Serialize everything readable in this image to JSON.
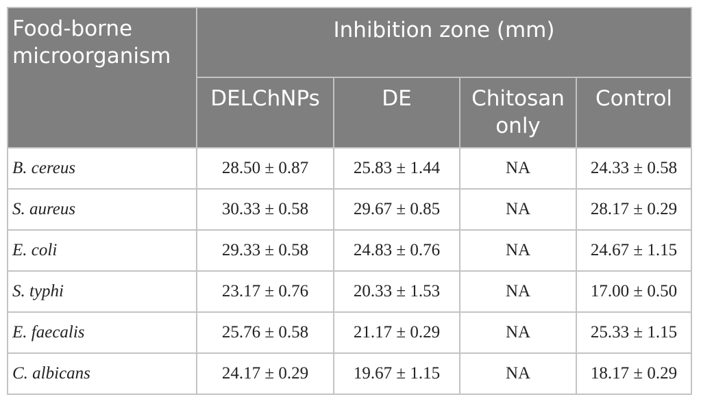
{
  "table": {
    "header": {
      "first": "Food-borne microorganism",
      "group": "Inhibition zone (mm)",
      "columns": [
        "DELChNPs",
        "DE",
        "Chitosan only",
        "Control"
      ]
    },
    "rows": [
      [
        "B. cereus",
        "28.50 ± 0.87",
        "25.83 ± 1.44",
        "NA",
        "24.33 ± 0.58"
      ],
      [
        "S. aureus",
        "30.33 ± 0.58",
        "29.67 ± 0.85",
        "NA",
        "28.17 ± 0.29"
      ],
      [
        "E. coli",
        "29.33 ± 0.58",
        "24.83 ± 0.76",
        "NA",
        "24.67 ± 1.15"
      ],
      [
        "S. typhi",
        "23.17 ± 0.76",
        "20.33 ± 1.53",
        "NA",
        "17.00 ± 0.50"
      ],
      [
        "E. faecalis",
        "25.76 ± 0.58",
        "21.17 ± 0.29",
        "NA",
        "25.33 ± 1.15"
      ],
      [
        "C. albicans",
        "24.17 ± 0.29",
        "19.67 ± 1.15",
        "NA",
        "18.17 ± 0.29"
      ]
    ]
  }
}
